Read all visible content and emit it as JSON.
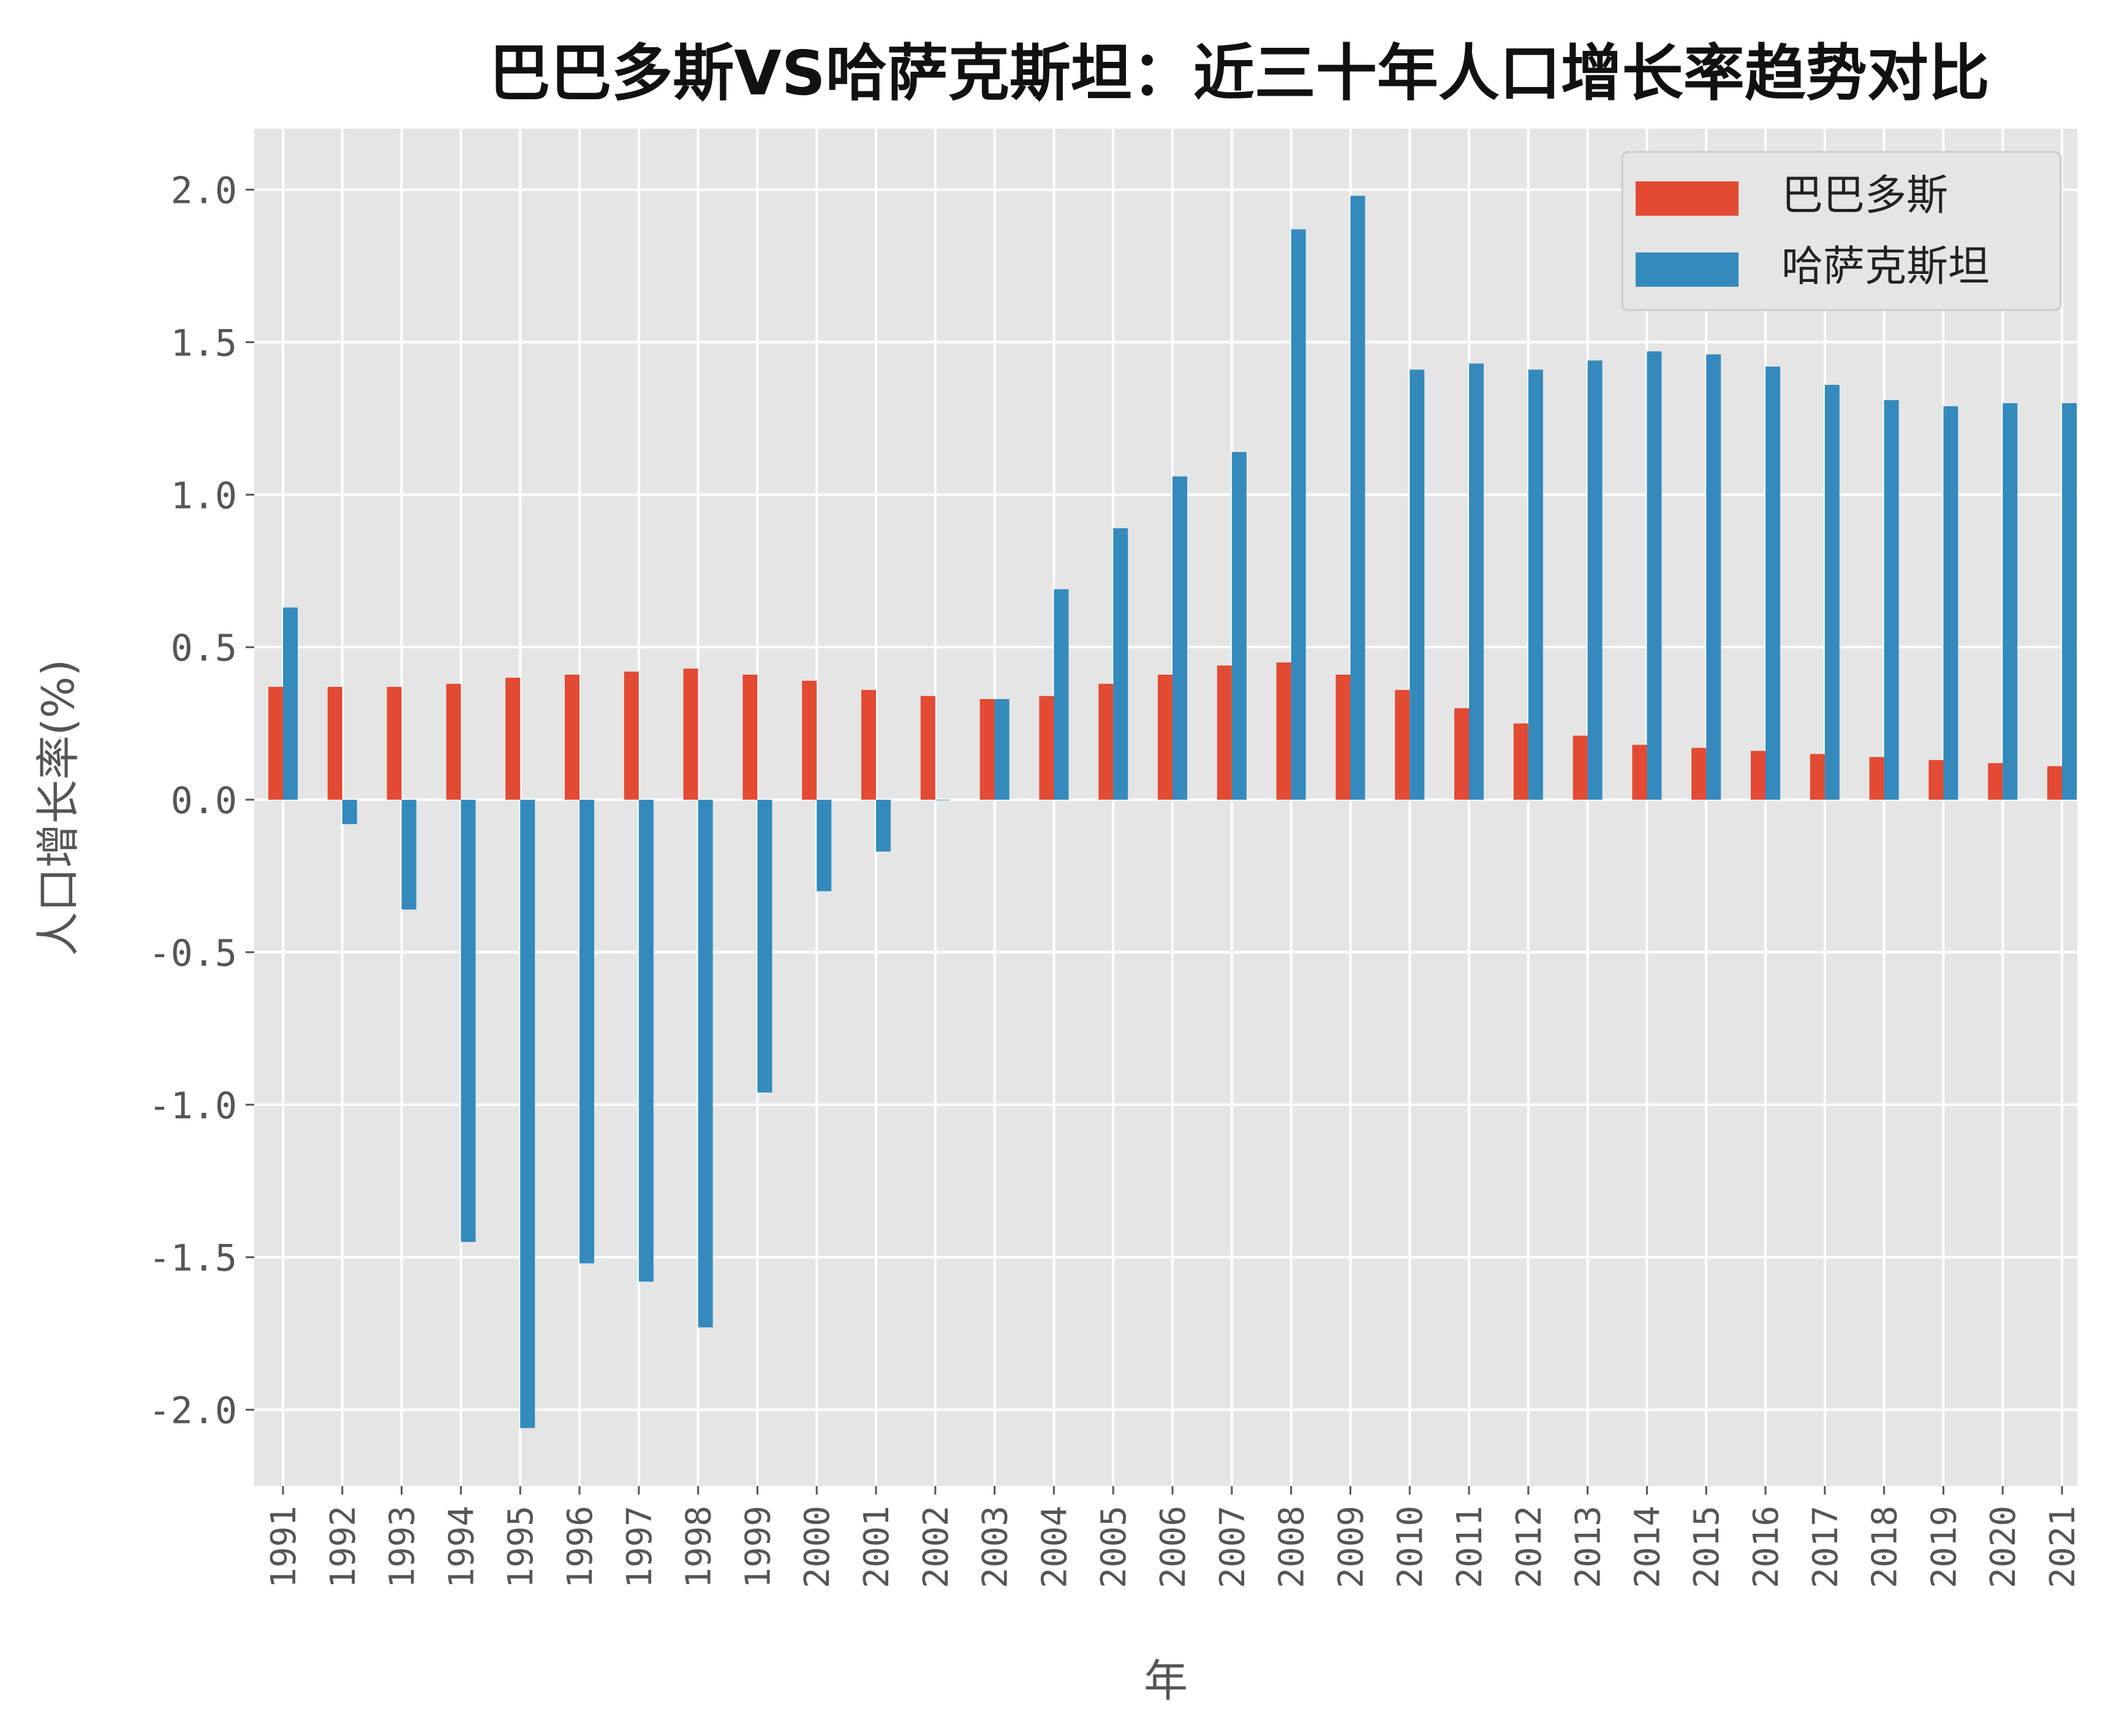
{
  "chart_data": {
    "type": "bar",
    "title": "巴巴多斯VS哈萨克斯坦：近三十年人口增长率趋势对比",
    "xlabel": "年",
    "ylabel": "人口增长率(%)",
    "ylim": [
      -2.25,
      2.2
    ],
    "yticks": [
      -2.0,
      -1.5,
      -1.0,
      -0.5,
      0.0,
      0.5,
      1.0,
      1.5,
      2.0
    ],
    "ytick_labels": [
      "-2.0",
      "-1.5",
      "-1.0",
      "-0.5",
      "0.0",
      "0.5",
      "1.0",
      "1.5",
      "2.0"
    ],
    "grid": true,
    "legend_position": "top-right",
    "categories": [
      "1991",
      "1992",
      "1993",
      "1994",
      "1995",
      "1996",
      "1997",
      "1998",
      "1999",
      "2000",
      "2001",
      "2002",
      "2003",
      "2004",
      "2005",
      "2006",
      "2007",
      "2008",
      "2009",
      "2010",
      "2011",
      "2012",
      "2013",
      "2014",
      "2015",
      "2016",
      "2017",
      "2018",
      "2019",
      "2020",
      "2021"
    ],
    "series": [
      {
        "name": "巴巴多斯",
        "color": "#E24A33",
        "values": [
          0.37,
          0.37,
          0.37,
          0.38,
          0.4,
          0.41,
          0.42,
          0.43,
          0.41,
          0.39,
          0.36,
          0.34,
          0.33,
          0.34,
          0.38,
          0.41,
          0.44,
          0.45,
          0.41,
          0.36,
          0.3,
          0.25,
          0.21,
          0.18,
          0.17,
          0.16,
          0.15,
          0.14,
          0.13,
          0.12,
          0.11
        ]
      },
      {
        "name": "哈萨克斯坦",
        "color": "#348ABD",
        "values": [
          0.63,
          -0.08,
          -0.36,
          -1.45,
          -2.06,
          -1.52,
          -1.58,
          -1.73,
          -0.96,
          -0.3,
          -0.17,
          0.0,
          0.33,
          0.69,
          0.89,
          1.06,
          1.14,
          1.87,
          1.98,
          1.41,
          1.43,
          1.41,
          1.44,
          1.47,
          1.46,
          1.42,
          1.36,
          1.31,
          1.29,
          1.3,
          1.3
        ]
      }
    ]
  },
  "style": {
    "plot_background": "#E5E5E5",
    "grid_color": "#FFFFFF",
    "legend_background": "#E5E5E5",
    "legend_border": "#CCCCCC"
  }
}
